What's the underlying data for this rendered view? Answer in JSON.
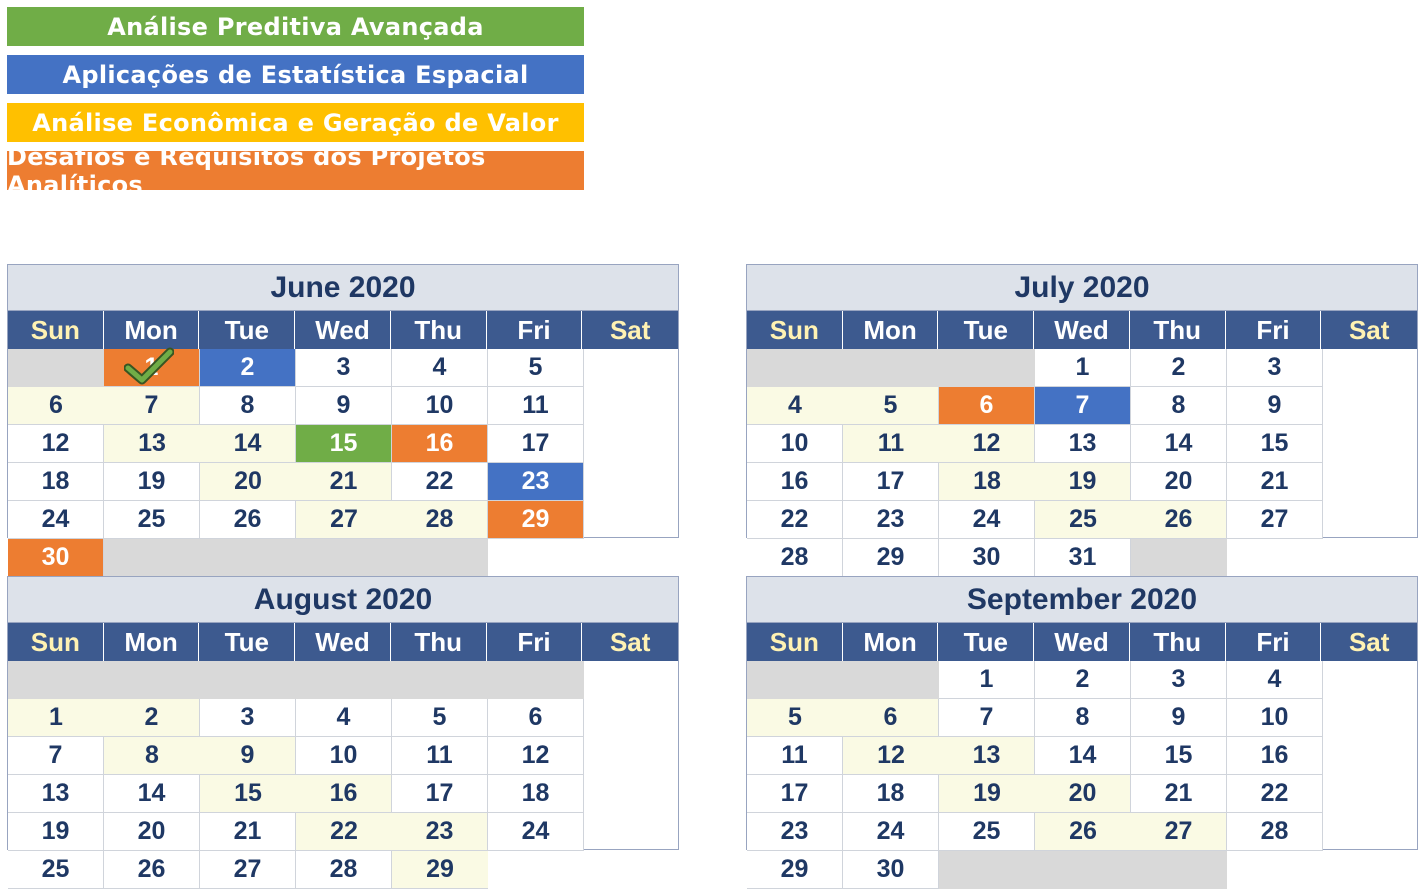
{
  "legend": [
    {
      "label": "Análise Preditiva Avançada",
      "color": "#70ad47"
    },
    {
      "label": "Aplicações de Estatística Espacial",
      "color": "#4472c4"
    },
    {
      "label": "Análise Econômica e Geração de Valor",
      "color": "#ffc000"
    },
    {
      "label": "Desafios e Requisitos dos Projetos Analíticos",
      "color": "#ed7d31"
    }
  ],
  "weekdays": [
    "Sun",
    "Mon",
    "Tue",
    "Wed",
    "Thu",
    "Fri",
    "Sat"
  ],
  "months": [
    {
      "title": "June 2020",
      "start_offset": 1,
      "days": 30,
      "highlights": {
        "1": "orange",
        "2": "blue",
        "15": "green",
        "16": "orange",
        "23": "blue",
        "29": "orange",
        "30": "orange"
      },
      "checked_day": 1
    },
    {
      "title": "July 2020",
      "start_offset": 3,
      "days": 31,
      "highlights": {
        "6": "orange",
        "7": "blue"
      }
    },
    {
      "title": "August 2020",
      "start_offset": 6,
      "days": 31,
      "highlights": {}
    },
    {
      "title": "September 2020",
      "start_offset": 2,
      "days": 30,
      "highlights": {}
    }
  ]
}
